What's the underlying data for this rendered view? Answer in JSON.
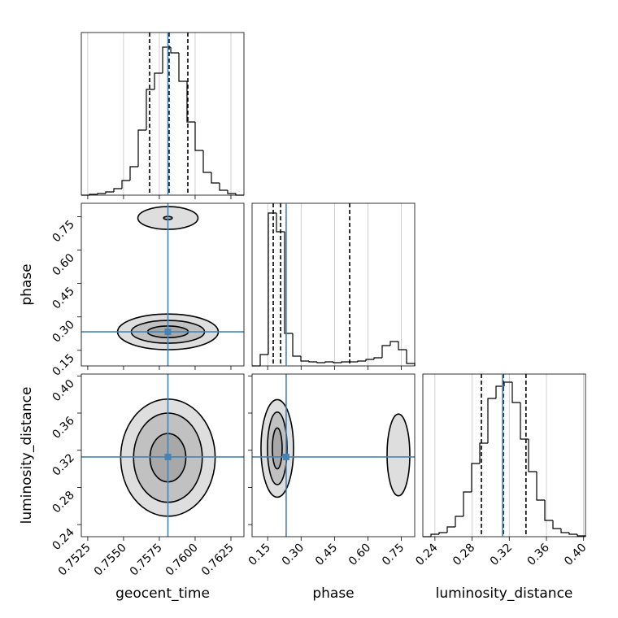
{
  "chart_data": {
    "type": "corner",
    "truth_color": "#4682b4",
    "parameters": [
      {
        "name": "geocent_time",
        "lim": [
          0.75205,
          0.76341
        ],
        "ticks": [
          0.7525,
          {
            "value": 0.755,
            "label": "0.7550"
          },
          0.7575,
          {
            "value": 0.76,
            "label": "0.7600"
          },
          0.7625
        ],
        "truth": 0.7581,
        "histogram": {
          "bins": [
            0.75205,
            0.752618,
            0.753186,
            0.753754,
            0.754322,
            0.75489,
            0.755458,
            0.756026,
            0.756594,
            0.757162,
            0.75773,
            0.758298,
            0.758866,
            0.759434,
            0.760002,
            0.76057,
            0.761138,
            0.761706,
            0.762274,
            0.762842,
            0.76341
          ],
          "values": [
            0,
            1,
            2,
            4,
            8,
            18,
            35,
            80,
            130,
            150,
            182,
            175,
            140,
            90,
            55,
            28,
            15,
            6,
            2,
            0
          ],
          "ylim": [
            0,
            200
          ],
          "quantiles": [
            0.75682,
            0.75818,
            0.75949
          ]
        }
      },
      {
        "name": "phase",
        "lim": [
          0.08,
          0.81
        ],
        "ticks": [
          0.15,
          {
            "value": 0.3,
            "label": "0.30"
          },
          0.45,
          {
            "value": 0.6,
            "label": "0.60"
          },
          0.75
        ],
        "truth": 0.233,
        "histogram": {
          "bins": [
            0.08,
            0.1165,
            0.153,
            0.1895,
            0.226,
            0.2625,
            0.299,
            0.3355,
            0.372,
            0.4085,
            0.445,
            0.4815,
            0.518,
            0.5545,
            0.591,
            0.6275,
            0.664,
            0.7005,
            0.737,
            0.7735,
            0.81
          ],
          "values": [
            0,
            14,
            188,
            165,
            40,
            12,
            6,
            5,
            4,
            5,
            4,
            5,
            5,
            6,
            8,
            10,
            25,
            30,
            20,
            3
          ],
          "ylim": [
            0,
            200
          ],
          "quantiles": [
            0.175,
            0.208,
            0.518
          ]
        }
      },
      {
        "name": "luminosity_distance",
        "lim": [
          0.227,
          0.402
        ],
        "ticks": [
          0.24,
          0.28,
          0.32,
          0.36,
          {
            "value": 0.4,
            "label": "0.40"
          }
        ],
        "truth": 0.3128,
        "histogram": {
          "bins": [
            0.227,
            0.23575,
            0.2445,
            0.25325,
            0.262,
            0.27075,
            0.2795,
            0.28825,
            0.297,
            0.30575,
            0.3145,
            0.32325,
            0.332,
            0.34075,
            0.3495,
            0.35825,
            0.367,
            0.37575,
            0.3845,
            0.39325,
            0.402
          ],
          "values": [
            0,
            3,
            5,
            12,
            25,
            55,
            90,
            115,
            170,
            185,
            190,
            165,
            120,
            80,
            45,
            20,
            10,
            5,
            3,
            1
          ],
          "ylim": [
            0,
            200
          ],
          "quantiles": [
            0.29,
            0.3136,
            0.338
          ]
        }
      }
    ],
    "pairs": [
      {
        "contours": [
          {
            "x": 0.7581,
            "y": 0.233,
            "rx": 0.00352,
            "ry": 0.08
          },
          {
            "x": 0.7581,
            "y": 0.233,
            "rx": 0.00256,
            "ry": 0.051
          },
          {
            "x": 0.7581,
            "y": 0.233,
            "rx": 0.00142,
            "ry": 0.026
          },
          {
            "x": 0.7581,
            "y": 0.744,
            "rx": 0.0021,
            "ry": 0.051
          },
          {
            "x": 0.7581,
            "y": 0.744,
            "rx": 0.0003,
            "ry": 0.007
          }
        ]
      },
      {
        "contours": [
          {
            "x": 0.7581,
            "y": 0.312,
            "rx": 0.0033,
            "ry": 0.063
          },
          {
            "x": 0.7581,
            "y": 0.312,
            "rx": 0.0024,
            "ry": 0.048
          },
          {
            "x": 0.7581,
            "y": 0.312,
            "rx": 0.00125,
            "ry": 0.026
          }
        ]
      },
      {
        "contours": [
          {
            "x": 0.193,
            "y": 0.322,
            "rx": 0.073,
            "ry": 0.0525
          },
          {
            "x": 0.193,
            "y": 0.322,
            "rx": 0.044,
            "ry": 0.039
          },
          {
            "x": 0.193,
            "y": 0.322,
            "rx": 0.022,
            "ry": 0.022
          },
          {
            "x": 0.737,
            "y": 0.315,
            "rx": 0.051,
            "ry": 0.044
          }
        ]
      }
    ]
  }
}
